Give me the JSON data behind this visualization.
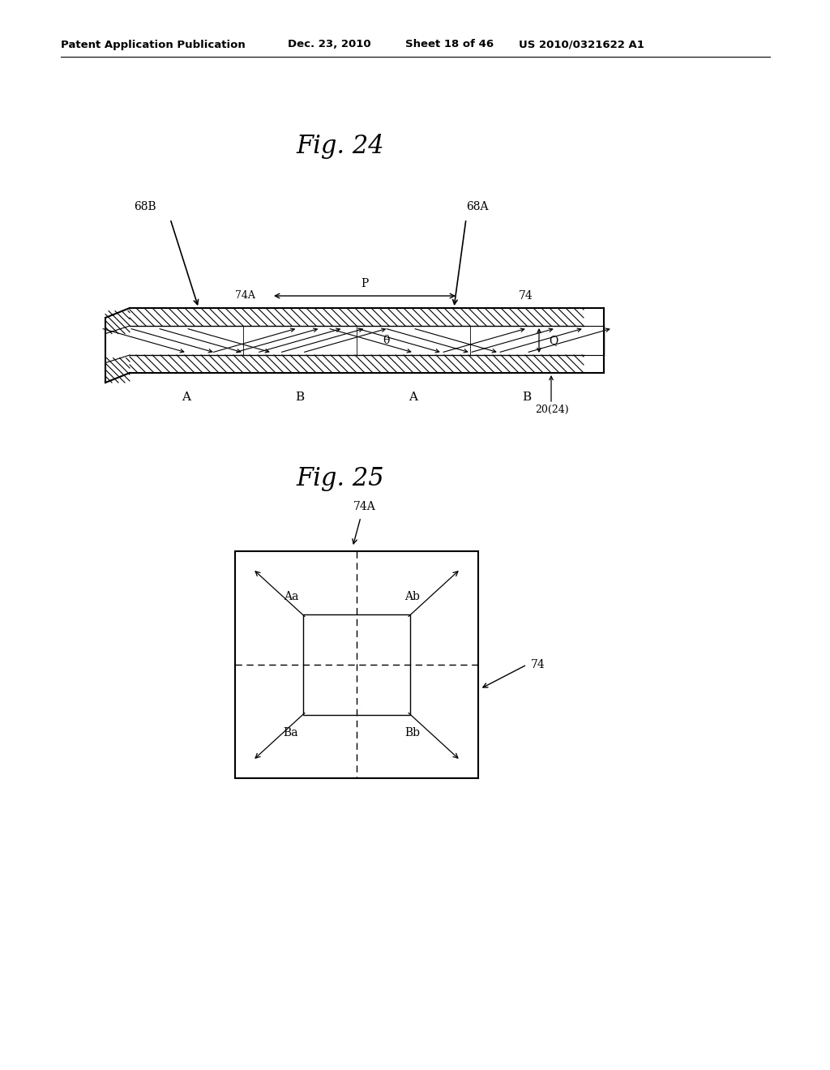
{
  "bg_color": "#ffffff",
  "header_text": "Patent Application Publication",
  "header_date": "Dec. 23, 2010",
  "header_sheet": "Sheet 18 of 46",
  "header_patent": "US 2010/0321622 A1",
  "fig24_title": "Fig. 24",
  "fig25_title": "Fig. 25"
}
